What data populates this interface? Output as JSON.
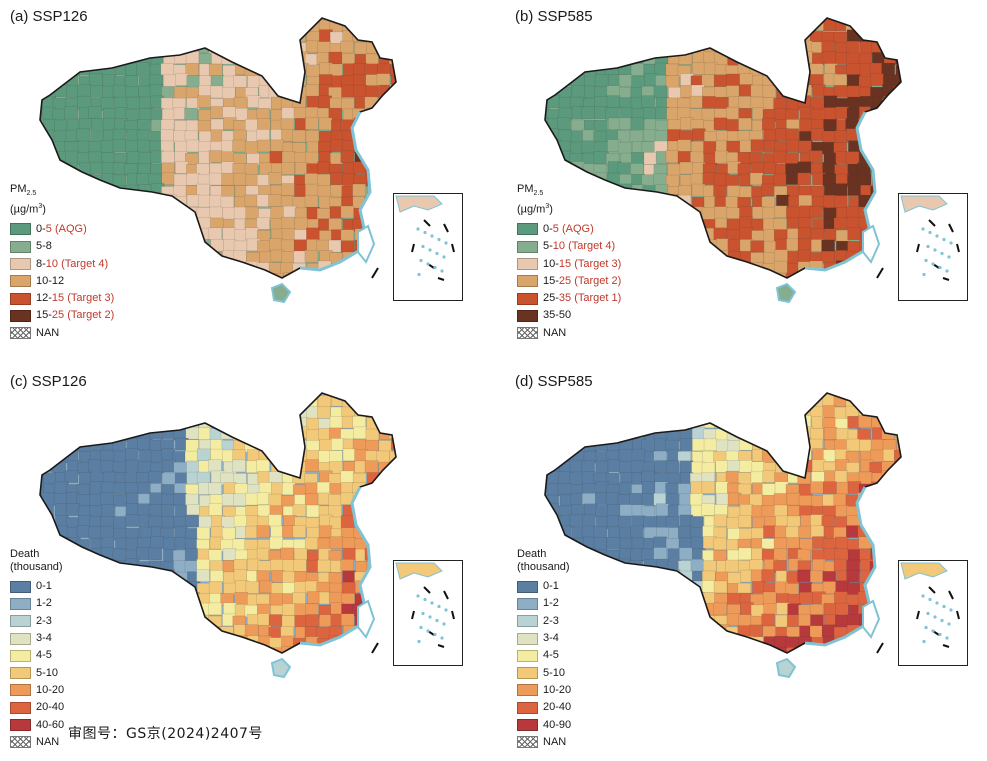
{
  "panels": [
    {
      "id": "a",
      "title": "(a) SSP126",
      "legend": {
        "title_lines": [
          "PM",
          "2.5",
          "(µg/m",
          "3",
          ")"
        ],
        "items": [
          {
            "pre": "0-",
            "num": "5",
            "tag": " (AQG)",
            "color": "#5b9a7c"
          },
          {
            "pre": "5-8",
            "num": "",
            "tag": "",
            "color": "#86ad8e"
          },
          {
            "pre": "8-",
            "num": "10",
            "tag": " (Target 4)",
            "color": "#e8c9b0"
          },
          {
            "pre": "10-12",
            "num": "",
            "tag": "",
            "color": "#d9a56a"
          },
          {
            "pre": "12-",
            "num": "15",
            "tag": " (Target 3)",
            "color": "#c9522f"
          },
          {
            "pre": "15-",
            "num": "25",
            "tag": " (Target 2)",
            "color": "#6a3220"
          },
          {
            "pre": "NAN",
            "num": "",
            "tag": "",
            "color": "hatch"
          }
        ]
      }
    },
    {
      "id": "b",
      "title": "(b) SSP585",
      "legend": {
        "title_lines": [
          "PM",
          "2.5",
          "(µg/m",
          "3",
          ")"
        ],
        "items": [
          {
            "pre": "0-",
            "num": "5",
            "tag": " (AQG)",
            "color": "#5b9a7c"
          },
          {
            "pre": "5-",
            "num": "10",
            "tag": " (Target 4)",
            "color": "#86ad8e"
          },
          {
            "pre": "10-",
            "num": "15",
            "tag": " (Target 3)",
            "color": "#e8c9b0"
          },
          {
            "pre": "15-",
            "num": "25",
            "tag": " (Target 2)",
            "color": "#d9a56a"
          },
          {
            "pre": "25-",
            "num": "35",
            "tag": " (Target 1)",
            "color": "#c9522f"
          },
          {
            "pre": "35-50",
            "num": "",
            "tag": "",
            "color": "#6a3220"
          },
          {
            "pre": "NAN",
            "num": "",
            "tag": "",
            "color": "hatch"
          }
        ]
      }
    },
    {
      "id": "c",
      "title": "(c) SSP126",
      "legend": {
        "title_lines": [
          "Death",
          "(thousand)"
        ],
        "items": [
          {
            "pre": "0-1",
            "num": "",
            "tag": "",
            "color": "#5b7ea3"
          },
          {
            "pre": "1-2",
            "num": "",
            "tag": "",
            "color": "#8eaec5"
          },
          {
            "pre": "2-3",
            "num": "",
            "tag": "",
            "color": "#b9d3d3"
          },
          {
            "pre": "3-4",
            "num": "",
            "tag": "",
            "color": "#dfe3c2"
          },
          {
            "pre": "4-5",
            "num": "",
            "tag": "",
            "color": "#f4eca0"
          },
          {
            "pre": "5-10",
            "num": "",
            "tag": "",
            "color": "#f2c879"
          },
          {
            "pre": "10-20",
            "num": "",
            "tag": "",
            "color": "#ee9a58"
          },
          {
            "pre": "20-40",
            "num": "",
            "tag": "",
            "color": "#dc6540"
          },
          {
            "pre": "40-60",
            "num": "",
            "tag": "",
            "color": "#b7393c"
          },
          {
            "pre": "NAN",
            "num": "",
            "tag": "",
            "color": "hatch"
          }
        ]
      }
    },
    {
      "id": "d",
      "title": "(d) SSP585",
      "legend": {
        "title_lines": [
          "Death",
          "(thousand)"
        ],
        "items": [
          {
            "pre": "0-1",
            "num": "",
            "tag": "",
            "color": "#5b7ea3"
          },
          {
            "pre": "1-2",
            "num": "",
            "tag": "",
            "color": "#8eaec5"
          },
          {
            "pre": "2-3",
            "num": "",
            "tag": "",
            "color": "#b9d3d3"
          },
          {
            "pre": "3-4",
            "num": "",
            "tag": "",
            "color": "#dfe3c2"
          },
          {
            "pre": "4-5",
            "num": "",
            "tag": "",
            "color": "#f4eca0"
          },
          {
            "pre": "5-10",
            "num": "",
            "tag": "",
            "color": "#f2c879"
          },
          {
            "pre": "10-20",
            "num": "",
            "tag": "",
            "color": "#ee9a58"
          },
          {
            "pre": "20-40",
            "num": "",
            "tag": "",
            "color": "#dc6540"
          },
          {
            "pre": "40-90",
            "num": "",
            "tag": "",
            "color": "#b7393c"
          },
          {
            "pre": "NAN",
            "num": "",
            "tag": "",
            "color": "hatch"
          }
        ]
      }
    }
  ],
  "review_number": "审图号：GS京(2024)2407号",
  "colors": {
    "coast": "#7fc3d6",
    "border": "#1a1a1a",
    "pm": [
      "#5b9a7c",
      "#86ad8e",
      "#e8c9b0",
      "#d9a56a",
      "#c9522f",
      "#6a3220"
    ],
    "death": [
      "#5b7ea3",
      "#8eaec5",
      "#b9d3d3",
      "#dfe3c2",
      "#f4eca0",
      "#f2c879",
      "#ee9a58",
      "#dc6540",
      "#b7393c"
    ]
  }
}
